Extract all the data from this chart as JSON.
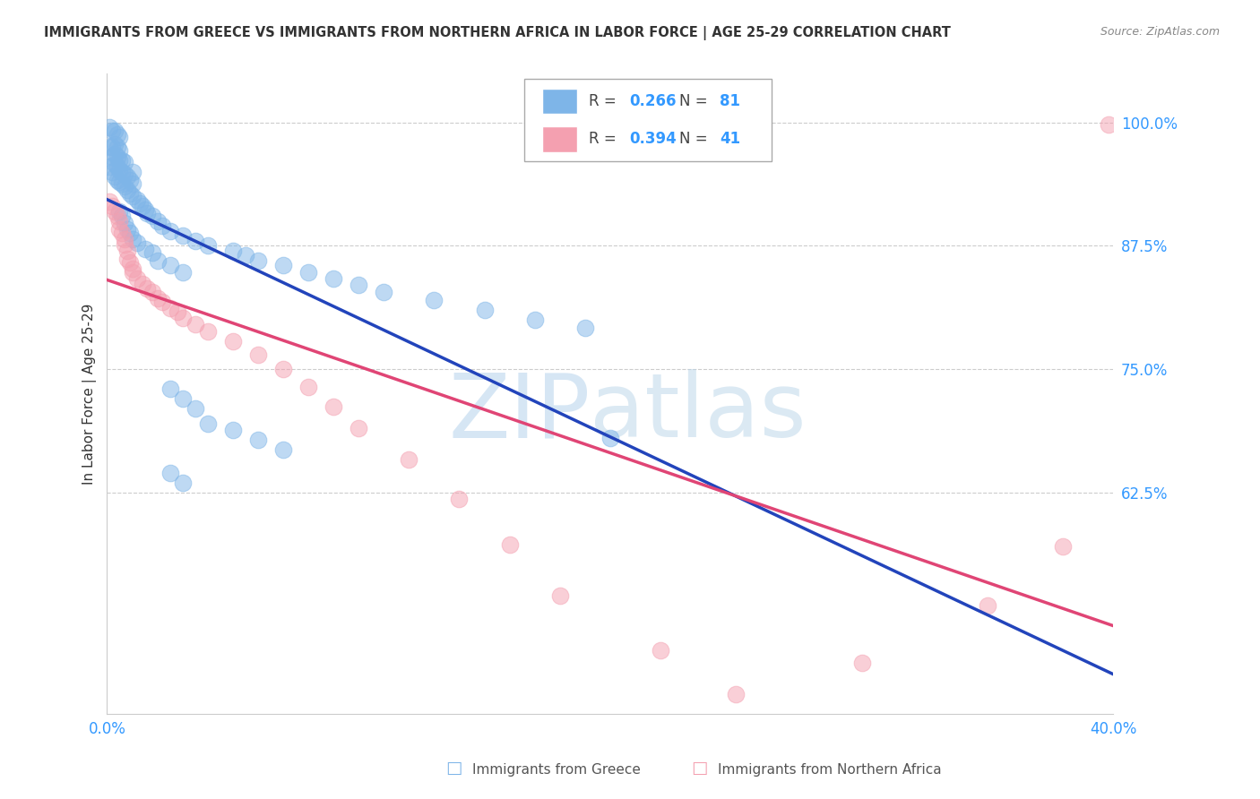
{
  "title": "IMMIGRANTS FROM GREECE VS IMMIGRANTS FROM NORTHERN AFRICA IN LABOR FORCE | AGE 25-29 CORRELATION CHART",
  "source": "Source: ZipAtlas.com",
  "ylabel": "In Labor Force | Age 25-29",
  "xlim": [
    0.0,
    0.4
  ],
  "ylim": [
    0.4,
    1.05
  ],
  "ytick_vals": [
    0.625,
    0.75,
    0.875,
    1.0
  ],
  "ytick_labels": [
    "62.5%",
    "75.0%",
    "87.5%",
    "100.0%"
  ],
  "xtick_vals": [
    0.0,
    0.05,
    0.1,
    0.15,
    0.2,
    0.25,
    0.3,
    0.35,
    0.4
  ],
  "xtick_labels": [
    "0.0%",
    "",
    "",
    "",
    "",
    "",
    "",
    "",
    "40.0%"
  ],
  "greece_R": 0.266,
  "greece_N": 81,
  "africa_R": 0.394,
  "africa_N": 41,
  "greece_color": "#7EB5E8",
  "africa_color": "#F4A0B0",
  "greece_line_color": "#2244BB",
  "africa_line_color": "#E04575",
  "tick_color": "#3399FF",
  "title_color": "#333333",
  "source_color": "#888888",
  "grid_color": "#CCCCCC",
  "legend_border_color": "#AAAAAA",
  "greece_x": [
    0.001,
    0.001,
    0.001,
    0.002,
    0.002,
    0.002,
    0.002,
    0.003,
    0.003,
    0.003,
    0.003,
    0.003,
    0.004,
    0.004,
    0.004,
    0.004,
    0.004,
    0.005,
    0.005,
    0.005,
    0.005,
    0.005,
    0.006,
    0.006,
    0.006,
    0.007,
    0.007,
    0.007,
    0.008,
    0.008,
    0.009,
    0.009,
    0.01,
    0.01,
    0.01,
    0.012,
    0.013,
    0.014,
    0.015,
    0.016,
    0.018,
    0.02,
    0.022,
    0.025,
    0.03,
    0.035,
    0.04,
    0.05,
    0.055,
    0.06,
    0.07,
    0.08,
    0.09,
    0.1,
    0.11,
    0.13,
    0.15,
    0.17,
    0.19,
    0.005,
    0.006,
    0.007,
    0.008,
    0.009,
    0.01,
    0.012,
    0.015,
    0.018,
    0.02,
    0.025,
    0.03,
    0.025,
    0.03,
    0.035,
    0.04,
    0.05,
    0.06,
    0.07,
    0.025,
    0.03,
    0.2
  ],
  "greece_y": [
    0.955,
    0.975,
    0.995,
    0.95,
    0.965,
    0.975,
    0.992,
    0.945,
    0.958,
    0.968,
    0.978,
    0.992,
    0.942,
    0.955,
    0.965,
    0.975,
    0.988,
    0.94,
    0.952,
    0.962,
    0.972,
    0.985,
    0.938,
    0.95,
    0.962,
    0.935,
    0.948,
    0.96,
    0.932,
    0.945,
    0.928,
    0.942,
    0.925,
    0.938,
    0.95,
    0.922,
    0.918,
    0.915,
    0.912,
    0.908,
    0.905,
    0.9,
    0.895,
    0.89,
    0.885,
    0.88,
    0.875,
    0.87,
    0.865,
    0.86,
    0.855,
    0.848,
    0.842,
    0.835,
    0.828,
    0.82,
    0.81,
    0.8,
    0.792,
    0.91,
    0.905,
    0.898,
    0.892,
    0.888,
    0.882,
    0.878,
    0.872,
    0.868,
    0.86,
    0.855,
    0.848,
    0.73,
    0.72,
    0.71,
    0.695,
    0.688,
    0.678,
    0.668,
    0.645,
    0.635,
    0.68
  ],
  "africa_x": [
    0.001,
    0.002,
    0.003,
    0.004,
    0.005,
    0.005,
    0.006,
    0.007,
    0.007,
    0.008,
    0.008,
    0.009,
    0.01,
    0.01,
    0.012,
    0.014,
    0.016,
    0.018,
    0.02,
    0.022,
    0.025,
    0.028,
    0.03,
    0.035,
    0.04,
    0.05,
    0.06,
    0.07,
    0.08,
    0.09,
    0.1,
    0.12,
    0.14,
    0.16,
    0.18,
    0.22,
    0.25,
    0.3,
    0.35,
    0.38,
    0.398
  ],
  "africa_y": [
    0.92,
    0.915,
    0.91,
    0.905,
    0.9,
    0.892,
    0.888,
    0.882,
    0.876,
    0.87,
    0.862,
    0.858,
    0.852,
    0.848,
    0.842,
    0.836,
    0.832,
    0.828,
    0.822,
    0.818,
    0.812,
    0.808,
    0.802,
    0.795,
    0.788,
    0.778,
    0.765,
    0.75,
    0.732,
    0.712,
    0.69,
    0.658,
    0.618,
    0.572,
    0.52,
    0.465,
    0.42,
    0.452,
    0.51,
    0.57,
    0.998
  ]
}
